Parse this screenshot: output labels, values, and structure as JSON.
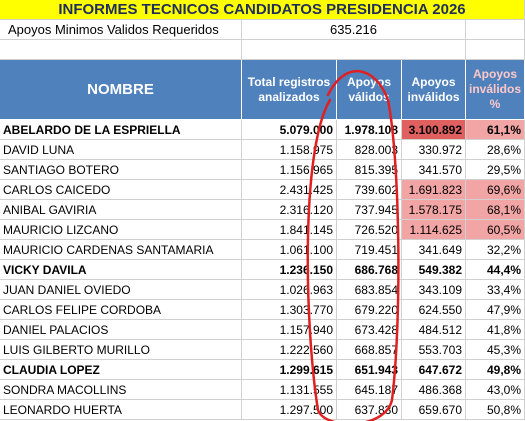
{
  "title": "INFORMES TECNICOS CANDIDATOS PRESIDENCIA 2026",
  "requirement": {
    "label": "Apoyos Minimos Validos Requeridos",
    "value": "635.216"
  },
  "table": {
    "headers": [
      "NOMBRE",
      "Total registros analizados",
      "Apoyos válidos",
      "Apoyos inválidos",
      "Apoyos inválidos %"
    ],
    "rows": [
      [
        "ABELARDO DE LA ESPRIELLA",
        "5.079.000",
        "1.978.108",
        "3.100.892",
        "61,1%"
      ],
      [
        "DAVID LUNA",
        "1.158.975",
        "828.003",
        "330.972",
        "28,6%"
      ],
      [
        "SANTIAGO BOTERO",
        "1.156.965",
        "815.395",
        "341.570",
        "29,5%"
      ],
      [
        "CARLOS CAICEDO",
        "2.431.425",
        "739.602",
        "1.691.823",
        "69,6%"
      ],
      [
        "ANIBAL GAVIRIA",
        "2.316.120",
        "737.945",
        "1.578.175",
        "68,1%"
      ],
      [
        "MAURICIO LIZCANO",
        "1.841.145",
        "726.520",
        "1.114.625",
        "60,5%"
      ],
      [
        "MAURICIO CARDENAS SANTAMARIA",
        "1.061.100",
        "719.451",
        "341.649",
        "32,2%"
      ],
      [
        "VICKY DAVILA",
        "1.236.150",
        "686.768",
        "549.382",
        "44,4%"
      ],
      [
        "JUAN DANIEL OVIEDO",
        "1.026.963",
        "683.854",
        "343.109",
        "33,4%"
      ],
      [
        "CARLOS FELIPE CORDOBA",
        "1.303.770",
        "679.220",
        "624.550",
        "47,9%"
      ],
      [
        "DANIEL PALACIOS",
        "1.157.940",
        "673.428",
        "484.512",
        "41,8%"
      ],
      [
        "LUIS GILBERTO MURILLO",
        "1.222.560",
        "668.857",
        "553.703",
        "45,3%"
      ],
      [
        "CLAUDIA LOPEZ",
        "1.299.615",
        "651.943",
        "647.672",
        "49,8%"
      ],
      [
        "SONDRA MACOLLINS",
        "1.131.555",
        "645.187",
        "486.368",
        "43,0%"
      ],
      [
        "LEONARDO HUERTA",
        "1.297.500",
        "637.830",
        "659.670",
        "50,8%"
      ]
    ]
  }
}
